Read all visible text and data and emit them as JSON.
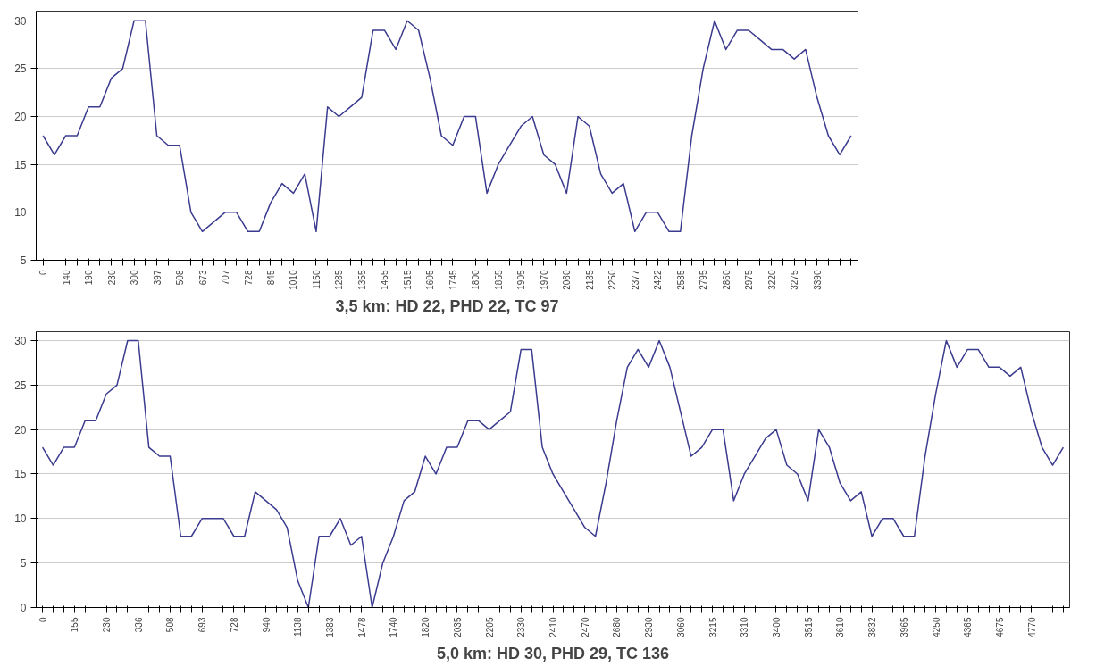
{
  "chart_data": [
    {
      "type": "line",
      "xlabel": "3,5 km: HD 22, PHD 22, TC 97",
      "color": "#3b3b8f",
      "ylim": [
        5,
        31
      ],
      "yticks": [
        5,
        10,
        15,
        20,
        25,
        30
      ],
      "grid": "y",
      "categories": [
        "0",
        null,
        "140",
        null,
        "190",
        null,
        "230",
        null,
        "300",
        null,
        "397",
        null,
        "508",
        null,
        "673",
        null,
        "707",
        null,
        "728",
        null,
        "845",
        null,
        "1010",
        null,
        "1150",
        null,
        "1285",
        null,
        "1355",
        null,
        "1455",
        null,
        "1515",
        null,
        "1605",
        null,
        "1745",
        null,
        "1800",
        null,
        "1855",
        null,
        "1905",
        null,
        "1970",
        null,
        "2060",
        null,
        "2135",
        null,
        "2250",
        null,
        "2377",
        null,
        "2422",
        null,
        "2585",
        null,
        "2795",
        null,
        "2860",
        null,
        "2975",
        null,
        "3220",
        null,
        "3275",
        null,
        "3390",
        null,
        null,
        null
      ],
      "values": [
        18,
        16,
        18,
        18,
        21,
        21,
        24,
        25,
        30,
        30,
        18,
        17,
        17,
        10,
        8,
        9,
        10,
        10,
        8,
        8,
        11,
        13,
        12,
        14,
        8,
        21,
        20,
        21,
        22,
        29,
        29,
        27,
        30,
        29,
        24,
        18,
        17,
        20,
        20,
        12,
        15,
        17,
        19,
        20,
        16,
        15,
        12,
        20,
        19,
        14,
        12,
        13,
        8,
        10,
        10,
        8,
        8,
        18,
        25,
        30,
        27,
        29,
        29,
        28,
        27,
        27,
        26,
        27,
        22,
        18,
        16,
        18
      ]
    },
    {
      "type": "line",
      "xlabel": "5,0 km: HD 30, PHD 29, TC 136",
      "color": "#3b3b8f",
      "ylim": [
        0,
        31
      ],
      "yticks": [
        0,
        5,
        10,
        15,
        20,
        25,
        30
      ],
      "grid": "y",
      "categories": [
        "0",
        null,
        null,
        "155",
        null,
        null,
        "230",
        null,
        null,
        "336",
        null,
        null,
        "508",
        null,
        null,
        "693",
        null,
        null,
        "728",
        null,
        null,
        "940",
        null,
        null,
        "1138",
        null,
        null,
        "1383",
        null,
        null,
        "1478",
        null,
        null,
        "1740",
        null,
        null,
        "1820",
        null,
        null,
        "2035",
        null,
        null,
        "2205",
        null,
        null,
        "2330",
        null,
        null,
        "2410",
        null,
        null,
        "2470",
        null,
        null,
        "2680",
        null,
        null,
        "2930",
        null,
        null,
        "3060",
        null,
        null,
        "3215",
        null,
        null,
        "3310",
        null,
        null,
        "3400",
        null,
        null,
        "3515",
        null,
        null,
        "3610",
        null,
        null,
        "3832",
        null,
        null,
        "3965",
        null,
        null,
        "4250",
        null,
        null,
        "4365",
        null,
        null,
        "4675",
        null,
        null,
        "4770",
        null,
        null,
        null
      ],
      "values": [
        18,
        16,
        18,
        18,
        21,
        21,
        24,
        25,
        30,
        30,
        18,
        17,
        17,
        8,
        8,
        10,
        10,
        10,
        8,
        8,
        13,
        12,
        11,
        9,
        3,
        0,
        8,
        8,
        10,
        7,
        8,
        0,
        5,
        8,
        12,
        13,
        17,
        15,
        18,
        18,
        21,
        21,
        20,
        21,
        22,
        29,
        29,
        18,
        15,
        13,
        11,
        9,
        8,
        14,
        21,
        27,
        29,
        27,
        30,
        27,
        22,
        17,
        18,
        20,
        20,
        12,
        15,
        17,
        19,
        20,
        16,
        15,
        12,
        20,
        18,
        14,
        12,
        13,
        8,
        10,
        10,
        8,
        8,
        17,
        24,
        30,
        27,
        29,
        29,
        27,
        27,
        26,
        27,
        22,
        18,
        16,
        18
      ]
    }
  ]
}
